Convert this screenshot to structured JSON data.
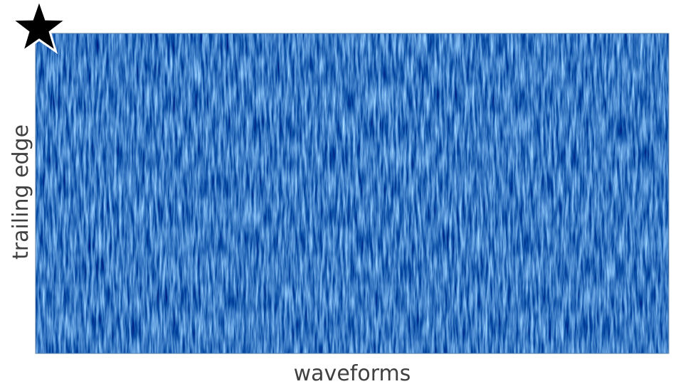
{
  "x_label": "waveforms",
  "y_label": "trailing edge"
}
